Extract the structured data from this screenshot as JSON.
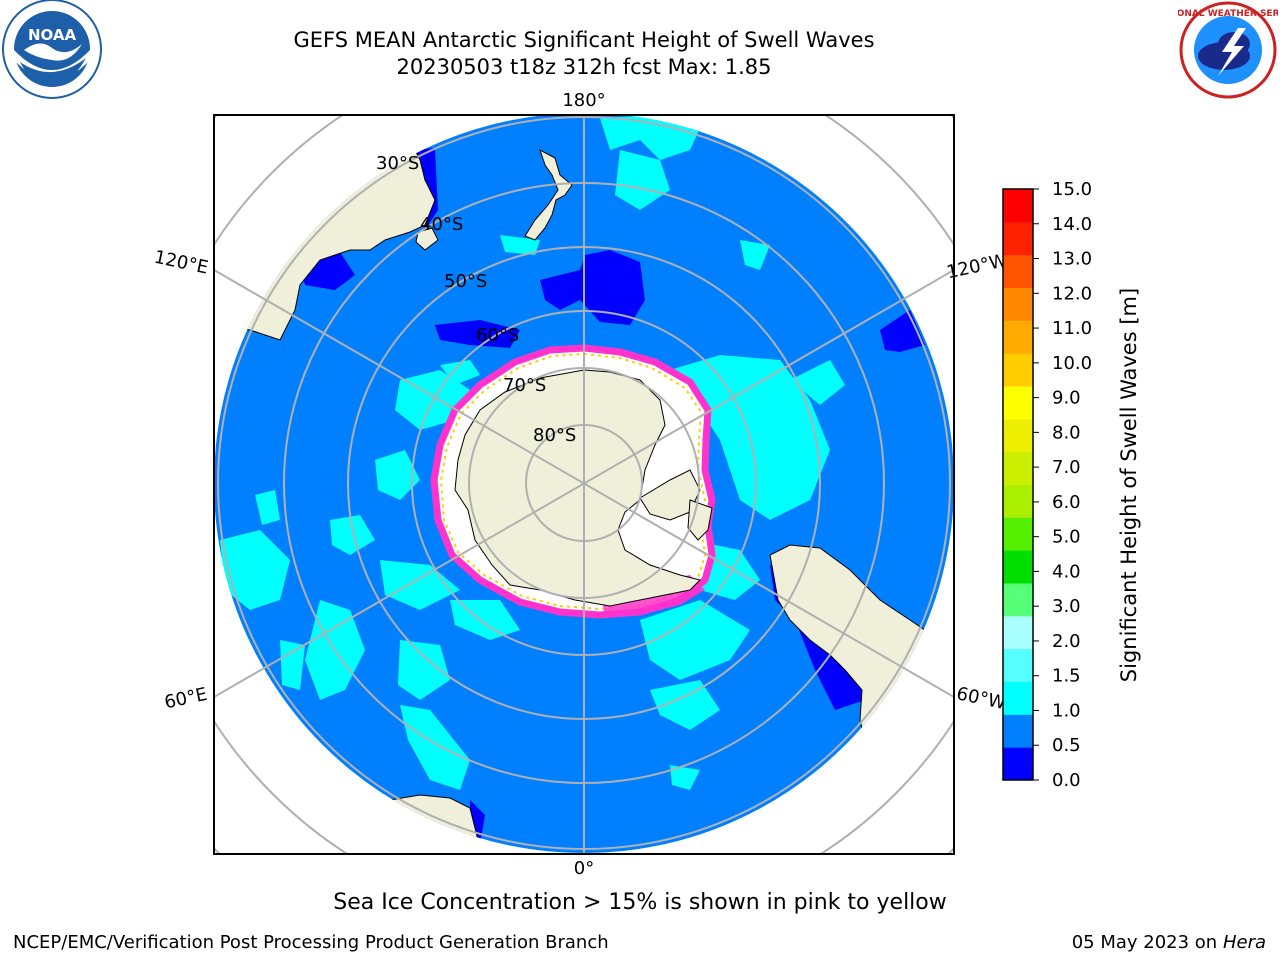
{
  "header": {
    "title_line1": "GEFS MEAN Antarctic Significant Height of Swell Waves",
    "title_line2": "20230503 t18z 312h fcst   Max: 1.85"
  },
  "logos": {
    "left": {
      "icon": "noaa-logo",
      "text": "NOAA"
    },
    "right": {
      "icon": "national-weather-service-logo",
      "text": "NATIONAL WEATHER SERVICE"
    }
  },
  "map": {
    "projection": "south-polar-stereographic",
    "longitude_labels": [
      "180°",
      "120°E",
      "120°W",
      "60°E",
      "60°W",
      "0°"
    ],
    "latitude_labels": [
      "30°S",
      "40°S",
      "50°S",
      "60°S",
      "70°S",
      "80°S"
    ],
    "colors": {
      "ocean_1_0_1_5": "#0080ff",
      "swell_1_5_2_0": "#00ffff",
      "swell_0_5_1_0": "#0000ff",
      "land": "#efefda",
      "ice_pink": "#ff33cc",
      "ice_yellow": "#ffcc00",
      "grid": "#b0b0b0"
    }
  },
  "colorbar": {
    "label": "Significant Height of Swell Waves [m]",
    "ticks": [
      "0.0",
      "0.5",
      "1.0",
      "1.5",
      "2.0",
      "3.0",
      "4.0",
      "5.0",
      "6.0",
      "7.0",
      "8.0",
      "9.0",
      "10.0",
      "11.0",
      "12.0",
      "13.0",
      "14.0",
      "15.0"
    ],
    "colors": [
      "#0000ff",
      "#0080ff",
      "#00ffff",
      "#55ffff",
      "#aaffff",
      "#55ff77",
      "#00dd00",
      "#55ee00",
      "#aaee00",
      "#ccee00",
      "#eeee00",
      "#ffff00",
      "#ffcc00",
      "#ffaa00",
      "#ff8800",
      "#ff5500",
      "#ff2200",
      "#ff0000"
    ]
  },
  "subtitle": "Sea Ice Concentration > 15% is shown in pink to yellow",
  "footer": {
    "left": "NCEP/EMC/Verification Post Processing Product Generation Branch",
    "right_date": "05 May 2023 on",
    "right_host": "Hera"
  }
}
